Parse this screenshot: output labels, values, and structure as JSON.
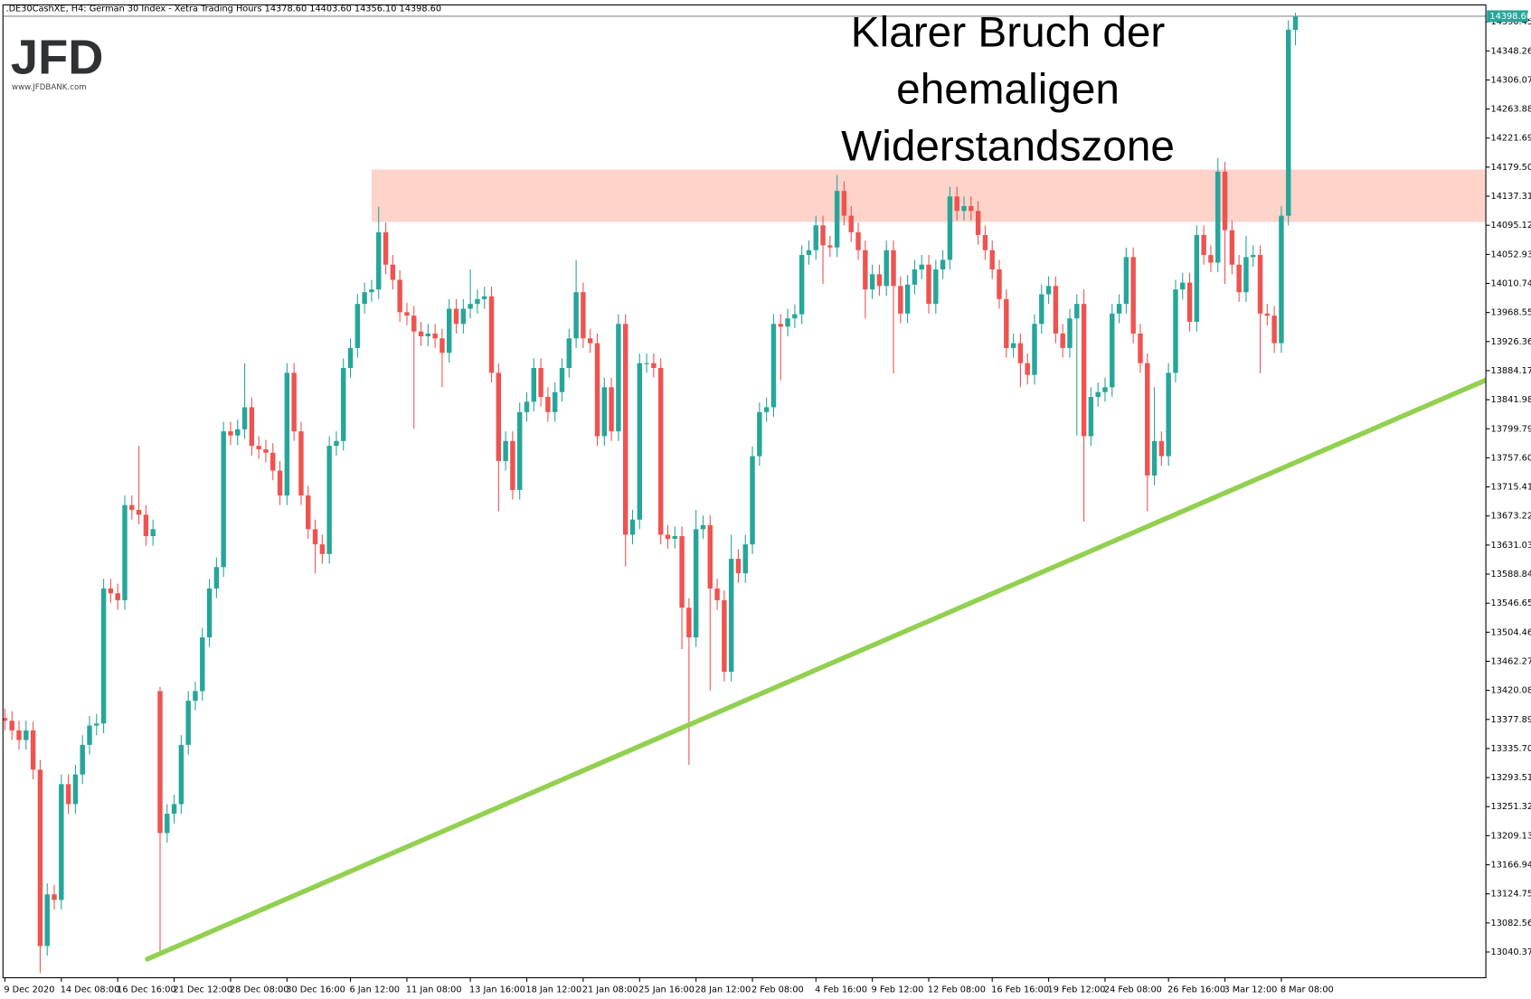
{
  "chart_data": {
    "type": "candlestick",
    "title": ".DE30CashXE, H4:  German 30 Index  - Xetra Trading Hours  14378.60 14403.60 14356.10 14398.60",
    "logo": {
      "text": "JFD",
      "url": "www.JFDBANK.com"
    },
    "annotation": [
      "Klarer Bruch der",
      "ehemaligen",
      "Widerstandszone"
    ],
    "up_color": "#26a69a",
    "down_color": "#ef5350",
    "ylim": [
      13003,
      14415
    ],
    "yticks": [
      13040.37,
      13082.56,
      13124.75,
      13166.94,
      13209.13,
      13251.32,
      13293.51,
      {
        "value": 13335.7,
        "label": "13335.70"
      },
      13377.89,
      13420.08,
      13462.27,
      13504.46,
      13546.65,
      13588.84,
      13631.03,
      13673.22,
      13715.41,
      {
        "value": 13757.6,
        "label": "13757.60"
      },
      13799.79,
      13841.98,
      13884.17,
      13926.36,
      13968.55,
      14010.74,
      14052.93,
      14095.12,
      14137.31,
      {
        "value": 14179.5,
        "label": "14179.50"
      },
      14221.69,
      14263.88,
      14306.07,
      14348.26,
      14390.45
    ],
    "last_label": {
      "value": 14398.6,
      "label": "14398.60",
      "color": "#26a69a"
    },
    "resistance_zone": {
      "from": 52,
      "y": [
        14100,
        14176
      ],
      "color": "#fdd3ca"
    },
    "trendline": {
      "x": [
        20.2,
        209.9
      ],
      "y": [
        13030,
        13870
      ],
      "color": "#92d050"
    },
    "categories": [
      "9 Dec 2020",
      null,
      null,
      null,
      null,
      null,
      null,
      null,
      "14 Dec 08:00",
      null,
      null,
      null,
      null,
      null,
      null,
      null,
      "16 Dec 16:00",
      null,
      null,
      null,
      null,
      null,
      null,
      null,
      "21 Dec 12:00",
      null,
      null,
      null,
      null,
      null,
      null,
      null,
      "28 Dec 08:00",
      null,
      null,
      null,
      null,
      null,
      null,
      null,
      "30 Dec 16:00",
      null,
      null,
      null,
      null,
      null,
      null,
      null,
      null,
      "6 Jan 12:00",
      null,
      null,
      null,
      null,
      null,
      null,
      null,
      "11 Jan 08:00",
      null,
      null,
      null,
      null,
      null,
      null,
      null,
      null,
      "13 Jan 16:00",
      null,
      null,
      null,
      null,
      null,
      null,
      null,
      "18 Jan 12:00",
      null,
      null,
      null,
      null,
      null,
      null,
      null,
      "21 Jan 08:00",
      null,
      null,
      null,
      null,
      null,
      null,
      null,
      "25 Jan 16:00",
      null,
      null,
      null,
      null,
      null,
      null,
      null,
      "28 Jan 12:00",
      null,
      null,
      null,
      null,
      null,
      null,
      null,
      "2 Feb 08:00",
      null,
      null,
      null,
      null,
      null,
      null,
      null,
      null,
      "4 Feb 16:00",
      null,
      null,
      null,
      null,
      null,
      null,
      null,
      "9 Feb 12:00",
      null,
      null,
      null,
      null,
      null,
      null,
      null,
      "12 Feb 08:00",
      null,
      null,
      null,
      null,
      null,
      null,
      null,
      null,
      "16 Feb 16:00",
      null,
      null,
      null,
      null,
      null,
      null,
      null,
      "19 Feb 12:00",
      null,
      null,
      null,
      null,
      null,
      null,
      null,
      "24 Feb 08:00",
      null,
      null,
      null,
      null,
      null,
      null,
      null,
      null,
      "26 Feb 16:00",
      null,
      null,
      null,
      null,
      null,
      null,
      null,
      "3 Mar 12:00",
      null,
      null,
      null,
      null,
      null,
      null,
      null,
      "8 Mar 08:00",
      null,
      null
    ],
    "open": [
      13380,
      13376,
      13362,
      13348,
      13362,
      13305,
      13049,
      13124,
      13116,
      13284,
      13255,
      13298,
      13341,
      13369,
      13372,
      13568,
      13561,
      13551,
      13689,
      13682,
      13675,
      13644,
      13419,
      13213,
      13241,
      13255,
      13341,
      13405,
      13419,
      13497,
      13568,
      13599,
      13796,
      13790,
      13799,
      13831,
      13775,
      13770,
      13765,
      13739,
      13703,
      13881,
      13796,
      13703,
      13654,
      13632,
      13618,
      13775,
      13782,
      13888,
      13917,
      13981,
      13998,
      14002,
      14085,
      14038,
      14016,
      13969,
      13964,
      13941,
      13934,
      13938,
      13931,
      13910,
      13974,
      13952,
      13974,
      13981,
      13988,
      13992,
      13881,
      13753,
      13782,
      13711,
      13824,
      13839,
      13888,
      13846,
      13824,
      13853,
      13888,
      13931,
      13998,
      13931,
      13924,
      13789,
      13860,
      13796,
      13952,
      13646,
      13668,
      13895,
      13895,
      13888,
      13646,
      13640,
      13644,
      13540,
      13497,
      13654,
      13660,
      13568,
      13551,
      13447,
      13611,
      13590,
      13632,
      13760,
      13824,
      13831,
      13952,
      13948,
      13960,
      13966,
      14052,
      14059,
      14095,
      14066,
      14063,
      14145,
      14109,
      14085,
      14059,
      14002,
      14024,
      14007,
      14059,
      14007,
      13967,
      14009,
      14031,
      14038,
      13981,
      14031,
      14045,
      14137,
      14116,
      14123,
      14116,
      14081,
      14059,
      14031,
      13988,
      13917,
      13924,
      13895,
      13878,
      13952,
      13995,
      14007,
      13938,
      13917,
      13960,
      13981,
      13789,
      13846,
      13853,
      13860,
      13967,
      13981,
      14049,
      13938,
      13895,
      13732,
      13782,
      13760,
      13881,
      14002,
      14012,
      13955,
      14081,
      14052,
      14041,
      14173,
      14088,
      14038,
      13998,
      14049,
      14052,
      13967,
      13964,
      13924,
      14109,
      14378.6
    ],
    "high": [
      13394,
      13390,
      13376,
      13376,
      13375,
      13319,
      13140,
      13138,
      13298,
      13298,
      13312,
      13355,
      13383,
      13386,
      13582,
      13582,
      13575,
      13703,
      13703,
      13775,
      13689,
      13668,
      13425,
      13255,
      13269,
      13355,
      13419,
      13433,
      13511,
      13582,
      13613,
      13810,
      13810,
      13813,
      13895,
      13845,
      13789,
      13784,
      13779,
      13753,
      13895,
      13895,
      13810,
      13717,
      13668,
      13646,
      13789,
      13796,
      13902,
      13931,
      13995,
      14012,
      14016,
      14122,
      14099,
      14052,
      14030,
      13983,
      13978,
      13955,
      13952,
      13952,
      13945,
      13988,
      13988,
      13988,
      14031,
      14002,
      14006,
      14006,
      13895,
      13796,
      13796,
      13838,
      13853,
      13902,
      13902,
      13860,
      13867,
      13902,
      13945,
      14045,
      14012,
      13945,
      13938,
      13874,
      13874,
      13966,
      13966,
      13682,
      13909,
      13909,
      13909,
      13902,
      13660,
      13658,
      13658,
      13554,
      13682,
      13674,
      13674,
      13582,
      13565,
      13646,
      13625,
      13646,
      13774,
      13838,
      13845,
      13966,
      13966,
      13974,
      13980,
      14066,
      14073,
      14109,
      14109,
      14080,
      14168,
      14159,
      14123,
      14099,
      14073,
      14038,
      14038,
      14073,
      14073,
      14021,
      14023,
      14045,
      14052,
      14052,
      14045,
      14059,
      14151,
      14151,
      14137,
      14137,
      14130,
      14095,
      14073,
      14045,
      14002,
      13938,
      13938,
      13909,
      13966,
      14009,
      14021,
      14021,
      13952,
      13974,
      13995,
      14002,
      13860,
      13867,
      13874,
      13981,
      13995,
      14063,
      14063,
      13952,
      13909,
      13860,
      13796,
      13895,
      14016,
      14026,
      14026,
      14095,
      14095,
      14066,
      14193,
      14187,
      14102,
      14052,
      14080,
      14066,
      14066,
      13981,
      13978,
      14123,
      14393,
      14403.6
    ],
    "low": [
      13362,
      13348,
      13334,
      13334,
      13291,
      13010,
      13035,
      13102,
      13102,
      13241,
      13241,
      13284,
      13327,
      13355,
      13358,
      13547,
      13537,
      13537,
      13668,
      13661,
      13630,
      13630,
      13040,
      13199,
      13227,
      13241,
      13327,
      13391,
      13405,
      13483,
      13554,
      13585,
      13776,
      13776,
      13785,
      13761,
      13756,
      13751,
      13725,
      13689,
      13689,
      13782,
      13689,
      13640,
      13590,
      13604,
      13604,
      13761,
      13768,
      13874,
      13903,
      13967,
      13984,
      13988,
      14024,
      14002,
      13955,
      13950,
      13800,
      13920,
      13920,
      13917,
      13860,
      13896,
      13938,
      13938,
      13960,
      13967,
      13974,
      13867,
      13680,
      13739,
      13697,
      13697,
      13810,
      13825,
      13832,
      13810,
      13810,
      13839,
      13874,
      13917,
      13917,
      13910,
      13775,
      13775,
      13782,
      13782,
      13600,
      13632,
      13654,
      13881,
      13874,
      13632,
      13626,
      13626,
      13480,
      13312,
      13483,
      13640,
      13420,
      13537,
      13433,
      13433,
      13576,
      13576,
      13618,
      13746,
      13810,
      13817,
      13870,
      13934,
      13946,
      13952,
      14038,
      14045,
      14010,
      14049,
      14049,
      14095,
      14071,
      14045,
      13960,
      13988,
      13993,
      13993,
      13880,
      13953,
      13953,
      13995,
      14017,
      13967,
      13967,
      14017,
      14031,
      14102,
      14102,
      14102,
      14067,
      14045,
      14017,
      13974,
      13903,
      13903,
      13860,
      13864,
      13864,
      13938,
      13981,
      13924,
      13903,
      13903,
      13790,
      13665,
      13775,
      13832,
      13839,
      13846,
      13953,
      13967,
      13924,
      13881,
      13680,
      13718,
      13746,
      13746,
      13867,
      13988,
      13941,
      13941,
      14038,
      14027,
      14027,
      14010,
      14024,
      13984,
      13984,
      14035,
      13880,
      13950,
      13910,
      13910,
      14095,
      14356.1
    ],
    "close": [
      13376,
      13362,
      13348,
      13362,
      13305,
      13049,
      13124,
      13116,
      13284,
      13255,
      13298,
      13341,
      13369,
      13372,
      13568,
      13561,
      13551,
      13689,
      13682,
      13675,
      13644,
      13654,
      13213,
      13241,
      13255,
      13341,
      13405,
      13419,
      13497,
      13568,
      13599,
      13796,
      13790,
      13799,
      13831,
      13775,
      13770,
      13765,
      13739,
      13703,
      13881,
      13796,
      13703,
      13654,
      13632,
      13618,
      13775,
      13782,
      13888,
      13917,
      13981,
      13998,
      14002,
      14085,
      14038,
      14016,
      13969,
      13964,
      13941,
      13934,
      13938,
      13931,
      13910,
      13974,
      13952,
      13974,
      13981,
      13988,
      13992,
      13881,
      13753,
      13782,
      13711,
      13824,
      13839,
      13888,
      13846,
      13824,
      13853,
      13888,
      13931,
      13998,
      13931,
      13924,
      13789,
      13860,
      13796,
      13952,
      13646,
      13668,
      13895,
      13895,
      13888,
      13646,
      13640,
      13644,
      13540,
      13497,
      13654,
      13660,
      13568,
      13551,
      13447,
      13611,
      13590,
      13632,
      13760,
      13824,
      13831,
      13952,
      13948,
      13960,
      13966,
      14052,
      14059,
      14095,
      14066,
      14063,
      14145,
      14109,
      14085,
      14059,
      14002,
      14024,
      14007,
      14059,
      14007,
      13967,
      14009,
      14031,
      14038,
      13981,
      14031,
      14045,
      14137,
      14116,
      14123,
      14116,
      14081,
      14059,
      14031,
      13988,
      13917,
      13924,
      13895,
      13878,
      13952,
      13995,
      14007,
      13938,
      13917,
      13960,
      13981,
      13789,
      13846,
      13853,
      13860,
      13967,
      13981,
      14049,
      13938,
      13895,
      13732,
      13782,
      13760,
      13881,
      14002,
      14012,
      13955,
      14081,
      14052,
      14041,
      14173,
      14088,
      14038,
      13998,
      14049,
      14052,
      13967,
      13964,
      13924,
      14109,
      14379,
      14398.6
    ]
  }
}
